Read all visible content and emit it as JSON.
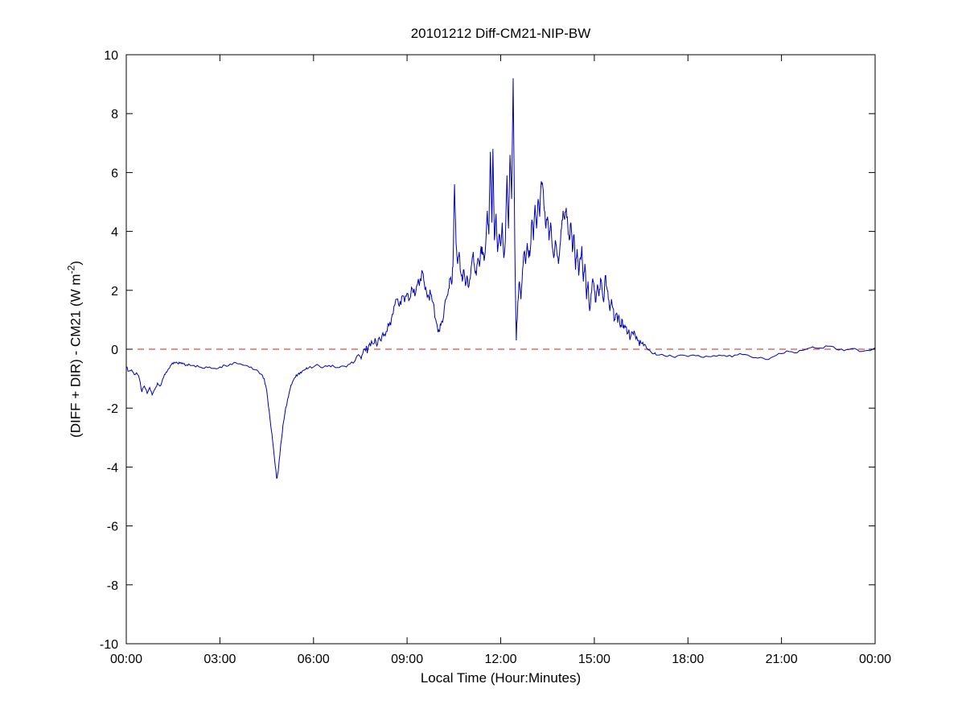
{
  "figure": {
    "title": "20101212 Diff-CM21-NIP-BW",
    "xlabel": "Local Time (Hour:Minutes)",
    "ylabel_main": "(DIFF + DIR) - CM21 (W m",
    "ylabel_sup": "-2",
    "ylabel_end": ")"
  },
  "chart_data": {
    "type": "line",
    "title": "20101212 Diff-CM21-NIP-BW",
    "xlabel": "Local Time (Hour:Minutes)",
    "ylabel": "(DIFF + DIR) - CM21 (W m^-2)",
    "xlim": [
      0,
      24
    ],
    "ylim": [
      -10,
      10
    ],
    "grid": false,
    "legend": "none",
    "xticks": {
      "positions": [
        0,
        3,
        6,
        9,
        12,
        15,
        18,
        21,
        24
      ],
      "labels": [
        "00:00",
        "03:00",
        "06:00",
        "09:00",
        "12:00",
        "15:00",
        "18:00",
        "21:00",
        "00:00"
      ]
    },
    "yticks": {
      "positions": [
        -10,
        -8,
        -6,
        -4,
        -2,
        0,
        2,
        4,
        6,
        8,
        10
      ],
      "labels": [
        "-10",
        "-8",
        "-6",
        "-4",
        "-2",
        "0",
        "2",
        "4",
        "6",
        "8",
        "10"
      ]
    },
    "reference_lines": [
      {
        "name": "zero-line",
        "y": 0,
        "color": "#cc2222",
        "style": "dashed"
      }
    ],
    "noise_bands": [
      {
        "from": 0,
        "to": 7.3,
        "amp": 0.05
      },
      {
        "from": 7.3,
        "to": 16.7,
        "amp": 0.18
      },
      {
        "from": 16.7,
        "to": 24,
        "amp": 0.05
      }
    ],
    "series": [
      {
        "name": "(DIFF+DIR)-CM21 difference",
        "color": "#0000b0",
        "points": [
          [
            0.0,
            -0.6
          ],
          [
            0.08,
            -0.75
          ],
          [
            0.17,
            -0.7
          ],
          [
            0.25,
            -0.85
          ],
          [
            0.33,
            -0.8
          ],
          [
            0.42,
            -1.0
          ],
          [
            0.5,
            -1.45
          ],
          [
            0.58,
            -1.25
          ],
          [
            0.67,
            -1.5
          ],
          [
            0.75,
            -1.3
          ],
          [
            0.83,
            -1.55
          ],
          [
            0.92,
            -1.35
          ],
          [
            1.0,
            -1.15
          ],
          [
            1.08,
            -1.25
          ],
          [
            1.17,
            -1.0
          ],
          [
            1.25,
            -0.85
          ],
          [
            1.33,
            -0.7
          ],
          [
            1.42,
            -0.55
          ],
          [
            1.5,
            -0.5
          ],
          [
            1.58,
            -0.45
          ],
          [
            1.67,
            -0.5
          ],
          [
            1.75,
            -0.45
          ],
          [
            1.83,
            -0.5
          ],
          [
            1.92,
            -0.55
          ],
          [
            2.0,
            -0.5
          ],
          [
            2.17,
            -0.55
          ],
          [
            2.33,
            -0.6
          ],
          [
            2.5,
            -0.65
          ],
          [
            2.67,
            -0.6
          ],
          [
            2.83,
            -0.65
          ],
          [
            3.0,
            -0.6
          ],
          [
            3.17,
            -0.55
          ],
          [
            3.33,
            -0.5
          ],
          [
            3.5,
            -0.45
          ],
          [
            3.67,
            -0.5
          ],
          [
            3.83,
            -0.55
          ],
          [
            4.0,
            -0.6
          ],
          [
            4.17,
            -0.7
          ],
          [
            4.33,
            -0.85
          ],
          [
            4.42,
            -1.0
          ],
          [
            4.5,
            -1.4
          ],
          [
            4.58,
            -2.1
          ],
          [
            4.67,
            -2.9
          ],
          [
            4.72,
            -3.4
          ],
          [
            4.78,
            -4.0
          ],
          [
            4.82,
            -4.4
          ],
          [
            4.87,
            -4.15
          ],
          [
            4.92,
            -3.6
          ],
          [
            4.97,
            -3.1
          ],
          [
            5.02,
            -2.6
          ],
          [
            5.08,
            -2.2
          ],
          [
            5.17,
            -1.7
          ],
          [
            5.25,
            -1.35
          ],
          [
            5.33,
            -1.1
          ],
          [
            5.42,
            -0.95
          ],
          [
            5.5,
            -0.85
          ],
          [
            5.58,
            -0.78
          ],
          [
            5.67,
            -0.72
          ],
          [
            5.75,
            -0.68
          ],
          [
            5.83,
            -0.65
          ],
          [
            6.0,
            -0.6
          ],
          [
            6.17,
            -0.55
          ],
          [
            6.33,
            -0.6
          ],
          [
            6.5,
            -0.55
          ],
          [
            6.67,
            -0.6
          ],
          [
            6.83,
            -0.62
          ],
          [
            7.0,
            -0.58
          ],
          [
            7.17,
            -0.5
          ],
          [
            7.33,
            -0.4
          ],
          [
            7.5,
            -0.25
          ],
          [
            7.58,
            -0.15
          ],
          [
            7.67,
            -0.05
          ],
          [
            7.75,
            0.05
          ],
          [
            7.83,
            0.1
          ],
          [
            7.92,
            0.18
          ],
          [
            8.0,
            0.25
          ],
          [
            8.08,
            0.35
          ],
          [
            8.17,
            0.28
          ],
          [
            8.25,
            0.45
          ],
          [
            8.33,
            0.6
          ],
          [
            8.42,
            0.8
          ],
          [
            8.5,
            1.05
          ],
          [
            8.58,
            1.45
          ],
          [
            8.67,
            1.7
          ],
          [
            8.75,
            1.45
          ],
          [
            8.83,
            1.8
          ],
          [
            8.92,
            1.6
          ],
          [
            9.0,
            1.9
          ],
          [
            9.08,
            1.7
          ],
          [
            9.17,
            2.05
          ],
          [
            9.25,
            1.8
          ],
          [
            9.33,
            2.2
          ],
          [
            9.42,
            2.4
          ],
          [
            9.5,
            2.6
          ],
          [
            9.55,
            2.25
          ],
          [
            9.62,
            1.95
          ],
          [
            9.7,
            1.75
          ],
          [
            9.75,
            1.9
          ],
          [
            9.83,
            1.6
          ],
          [
            9.92,
            1.0
          ],
          [
            9.97,
            0.75
          ],
          [
            10.03,
            0.6
          ],
          [
            10.08,
            0.8
          ],
          [
            10.17,
            1.1
          ],
          [
            10.25,
            1.7
          ],
          [
            10.33,
            2.05
          ],
          [
            10.38,
            2.4
          ],
          [
            10.43,
            2.2
          ],
          [
            10.47,
            2.8
          ],
          [
            10.52,
            5.6
          ],
          [
            10.57,
            3.6
          ],
          [
            10.62,
            2.9
          ],
          [
            10.67,
            3.3
          ],
          [
            10.72,
            2.6
          ],
          [
            10.77,
            2.3
          ],
          [
            10.82,
            2.7
          ],
          [
            10.87,
            2.15
          ],
          [
            10.92,
            2.5
          ],
          [
            10.97,
            2.1
          ],
          [
            11.02,
            2.4
          ],
          [
            11.07,
            2.9
          ],
          [
            11.12,
            3.3
          ],
          [
            11.17,
            2.7
          ],
          [
            11.22,
            2.5
          ],
          [
            11.27,
            3.1
          ],
          [
            11.32,
            2.8
          ],
          [
            11.37,
            3.5
          ],
          [
            11.42,
            3.2
          ],
          [
            11.47,
            3.0
          ],
          [
            11.52,
            3.6
          ],
          [
            11.57,
            4.7
          ],
          [
            11.62,
            3.9
          ],
          [
            11.67,
            6.7
          ],
          [
            11.72,
            4.3
          ],
          [
            11.75,
            6.8
          ],
          [
            11.8,
            3.7
          ],
          [
            11.85,
            4.6
          ],
          [
            11.9,
            3.3
          ],
          [
            11.95,
            3.9
          ],
          [
            12.0,
            3.5
          ],
          [
            12.05,
            4.3
          ],
          [
            12.1,
            3.1
          ],
          [
            12.15,
            3.7
          ],
          [
            12.2,
            5.9
          ],
          [
            12.25,
            4.1
          ],
          [
            12.3,
            6.6
          ],
          [
            12.35,
            5.1
          ],
          [
            12.4,
            9.2
          ],
          [
            12.45,
            3.6
          ],
          [
            12.5,
            0.3
          ],
          [
            12.55,
            1.6
          ],
          [
            12.6,
            2.3
          ],
          [
            12.65,
            1.7
          ],
          [
            12.7,
            2.7
          ],
          [
            12.75,
            3.3
          ],
          [
            12.8,
            2.9
          ],
          [
            12.85,
            3.6
          ],
          [
            12.9,
            3.1
          ],
          [
            12.95,
            3.4
          ],
          [
            13.0,
            4.4
          ],
          [
            13.05,
            3.7
          ],
          [
            13.1,
            4.9
          ],
          [
            13.15,
            4.1
          ],
          [
            13.2,
            5.1
          ],
          [
            13.25,
            4.5
          ],
          [
            13.3,
            5.7
          ],
          [
            13.35,
            5.5
          ],
          [
            13.4,
            4.7
          ],
          [
            13.45,
            4.1
          ],
          [
            13.5,
            4.5
          ],
          [
            13.55,
            3.7
          ],
          [
            13.6,
            4.3
          ],
          [
            13.65,
            3.5
          ],
          [
            13.7,
            3.1
          ],
          [
            13.75,
            3.7
          ],
          [
            13.8,
            3.3
          ],
          [
            13.85,
            2.9
          ],
          [
            13.9,
            3.5
          ],
          [
            13.95,
            4.1
          ],
          [
            14.0,
            4.7
          ],
          [
            14.05,
            4.4
          ],
          [
            14.1,
            4.8
          ],
          [
            14.15,
            4.2
          ],
          [
            14.2,
            3.7
          ],
          [
            14.25,
            4.3
          ],
          [
            14.3,
            3.3
          ],
          [
            14.35,
            3.9
          ],
          [
            14.4,
            2.7
          ],
          [
            14.45,
            3.4
          ],
          [
            14.5,
            2.5
          ],
          [
            14.55,
            3.1
          ],
          [
            14.6,
            3.5
          ],
          [
            14.65,
            2.3
          ],
          [
            14.7,
            2.9
          ],
          [
            14.75,
            1.7
          ],
          [
            14.8,
            2.3
          ],
          [
            14.85,
            1.3
          ],
          [
            14.9,
            1.9
          ],
          [
            14.95,
            2.4
          ],
          [
            15.0,
            2.0
          ],
          [
            15.05,
            1.6
          ],
          [
            15.1,
            2.2
          ],
          [
            15.15,
            1.8
          ],
          [
            15.2,
            2.4
          ],
          [
            15.25,
            2.0
          ],
          [
            15.3,
            1.6
          ],
          [
            15.35,
            2.5
          ],
          [
            15.4,
            2.1
          ],
          [
            15.45,
            1.7
          ],
          [
            15.5,
            1.3
          ],
          [
            15.55,
            1.7
          ],
          [
            15.6,
            1.4
          ],
          [
            15.65,
            1.0
          ],
          [
            15.7,
            1.2
          ],
          [
            15.75,
            0.9
          ],
          [
            15.8,
            1.1
          ],
          [
            15.85,
            0.8
          ],
          [
            15.9,
            1.0
          ],
          [
            15.95,
            0.7
          ],
          [
            16.0,
            0.75
          ],
          [
            16.08,
            0.55
          ],
          [
            16.17,
            0.45
          ],
          [
            16.25,
            0.5
          ],
          [
            16.33,
            0.35
          ],
          [
            16.42,
            0.3
          ],
          [
            16.5,
            0.2
          ],
          [
            16.58,
            0.12
          ],
          [
            16.67,
            0.05
          ],
          [
            16.75,
            -0.02
          ],
          [
            16.83,
            -0.1
          ],
          [
            16.92,
            -0.15
          ],
          [
            17.0,
            -0.2
          ],
          [
            17.25,
            -0.22
          ],
          [
            17.5,
            -0.25
          ],
          [
            17.75,
            -0.2
          ],
          [
            18.0,
            -0.25
          ],
          [
            18.25,
            -0.22
          ],
          [
            18.5,
            -0.28
          ],
          [
            18.75,
            -0.25
          ],
          [
            19.0,
            -0.2
          ],
          [
            19.25,
            -0.25
          ],
          [
            19.5,
            -0.2
          ],
          [
            19.75,
            -0.18
          ],
          [
            20.0,
            -0.25
          ],
          [
            20.25,
            -0.3
          ],
          [
            20.5,
            -0.35
          ],
          [
            20.75,
            -0.25
          ],
          [
            21.0,
            -0.15
          ],
          [
            21.25,
            -0.08
          ],
          [
            21.5,
            -0.12
          ],
          [
            21.75,
            -0.02
          ],
          [
            22.0,
            0.08
          ],
          [
            22.25,
            0.04
          ],
          [
            22.5,
            0.1
          ],
          [
            22.75,
            0.0
          ],
          [
            23.0,
            -0.05
          ],
          [
            23.25,
            0.02
          ],
          [
            23.5,
            -0.08
          ],
          [
            23.75,
            -0.04
          ],
          [
            24.0,
            0.05
          ]
        ]
      }
    ]
  }
}
